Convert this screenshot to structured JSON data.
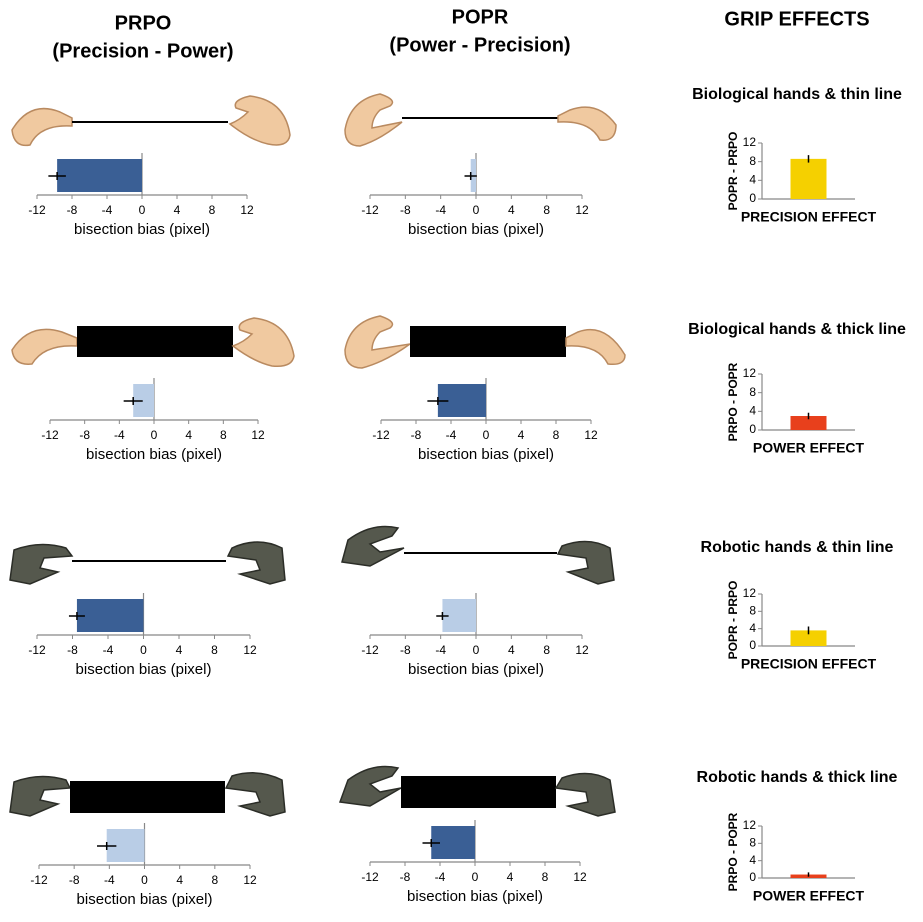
{
  "headers": [
    {
      "title": "PRPO",
      "subtitle": "(Precision - Power)"
    },
    {
      "title": "POPR",
      "subtitle": "(Power - Precision)"
    },
    {
      "title": "GRIP EFFECTS"
    }
  ],
  "chart_data": [
    {
      "type": "hbar",
      "values": [
        -9.7
      ],
      "errors": [
        1.0
      ],
      "color": "#3a5f95",
      "xlim": [
        -12,
        12
      ],
      "xticks": [
        -12,
        -8,
        -4,
        0,
        4,
        8,
        12
      ],
      "xlabel": "bisection bias (pixel)"
    },
    {
      "type": "hbar",
      "values": [
        -0.6
      ],
      "errors": [
        0.7
      ],
      "color": "#b9cde6",
      "xlim": [
        -12,
        12
      ],
      "xticks": [
        -12,
        -8,
        -4,
        0,
        4,
        8,
        12
      ],
      "xlabel": "bisection bias (pixel)"
    },
    {
      "type": "hbar",
      "values": [
        -2.4
      ],
      "errors": [
        1.1
      ],
      "color": "#b9cde6",
      "xlim": [
        -12,
        12
      ],
      "xticks": [
        -12,
        -8,
        -4,
        0,
        4,
        8,
        12
      ],
      "xlabel": "bisection bias (pixel)"
    },
    {
      "type": "hbar",
      "values": [
        -5.5
      ],
      "errors": [
        1.2
      ],
      "color": "#3a5f95",
      "xlim": [
        -12,
        12
      ],
      "xticks": [
        -12,
        -8,
        -4,
        0,
        4,
        8,
        12
      ],
      "xlabel": "bisection bias (pixel)"
    },
    {
      "type": "hbar",
      "values": [
        -7.5
      ],
      "errors": [
        0.9
      ],
      "color": "#3a5f95",
      "xlim": [
        -12,
        12
      ],
      "xticks": [
        -12,
        -8,
        -4,
        0,
        4,
        8,
        12
      ],
      "xlabel": "bisection bias (pixel)"
    },
    {
      "type": "hbar",
      "values": [
        -3.8
      ],
      "errors": [
        0.7
      ],
      "color": "#b9cde6",
      "xlim": [
        -12,
        12
      ],
      "xticks": [
        -12,
        -8,
        -4,
        0,
        4,
        8,
        12
      ],
      "xlabel": "bisection bias (pixel)"
    },
    {
      "type": "hbar",
      "values": [
        -4.3
      ],
      "errors": [
        1.1
      ],
      "color": "#b9cde6",
      "xlim": [
        -12,
        12
      ],
      "xticks": [
        -12,
        -8,
        -4,
        0,
        4,
        8,
        12
      ],
      "xlabel": "bisection bias (pixel)"
    },
    {
      "type": "hbar",
      "values": [
        -5.0
      ],
      "errors": [
        1.0
      ],
      "color": "#3a5f95",
      "xlim": [
        -12,
        12
      ],
      "xticks": [
        -12,
        -8,
        -4,
        0,
        4,
        8,
        12
      ],
      "xlabel": "bisection bias (pixel)"
    },
    {
      "type": "vbar",
      "title": "Biological hands & thin line",
      "ylabel": "POPR - PRPO",
      "xlabel": "PRECISION EFFECT",
      "values": [
        8.6
      ],
      "errors": [
        0.8
      ],
      "color": "#f5d000",
      "ylim": [
        0,
        12
      ],
      "yticks": [
        0,
        4,
        8,
        12
      ]
    },
    {
      "type": "vbar",
      "title": "Biological hands & thick line",
      "ylabel": "PRPO - POPR",
      "xlabel": "POWER EFFECT",
      "values": [
        3.0
      ],
      "errors": [
        0.7
      ],
      "color": "#e8401c",
      "ylim": [
        0,
        12
      ],
      "yticks": [
        0,
        4,
        8,
        12
      ]
    },
    {
      "type": "vbar",
      "title": "Robotic hands & thin line",
      "ylabel": "POPR - PRPO",
      "xlabel": "PRECISION EFFECT",
      "values": [
        3.6
      ],
      "errors": [
        0.9
      ],
      "color": "#f5d000",
      "ylim": [
        0,
        12
      ],
      "yticks": [
        0,
        4,
        8,
        12
      ]
    },
    {
      "type": "vbar",
      "title": "Robotic hands & thick line",
      "ylabel": "PRPO - POPR",
      "xlabel": "POWER EFFECT",
      "values": [
        0.8
      ],
      "errors": [
        0.5
      ],
      "color": "#e8401c",
      "ylim": [
        0,
        12
      ],
      "yticks": [
        0,
        4,
        8,
        12
      ]
    }
  ]
}
